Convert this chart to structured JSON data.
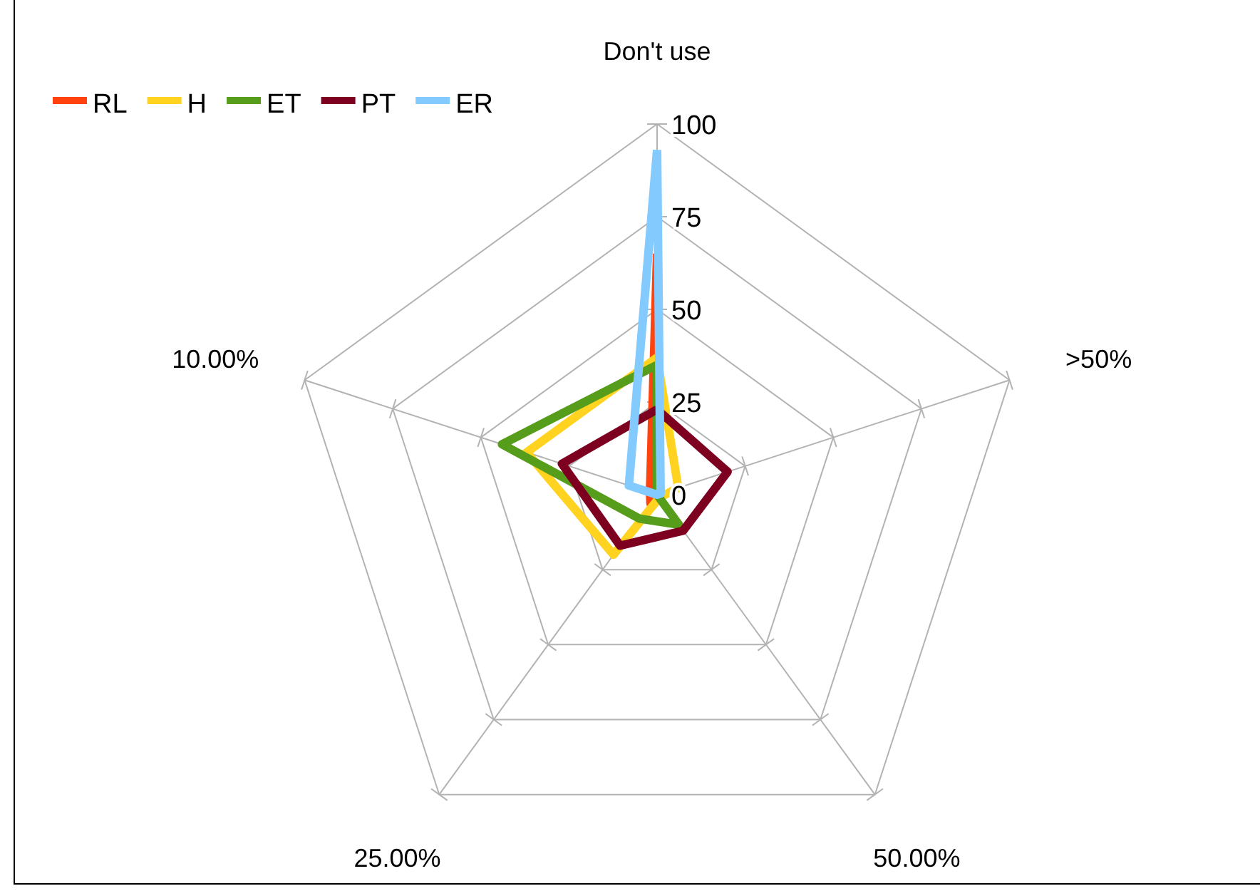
{
  "chart_data": {
    "type": "radar",
    "categories": [
      "Don't use",
      ">50%",
      "50.00%",
      "25.00%",
      "10.00%"
    ],
    "ylim": [
      0,
      100
    ],
    "yticks": [
      0,
      25,
      50,
      75,
      100
    ],
    "grid": true,
    "legend": "top left",
    "series": [
      {
        "name": "RL",
        "color": "#ff420e",
        "values": [
          65,
          0,
          0,
          3,
          2
        ]
      },
      {
        "name": "H",
        "color": "#ffd320",
        "values": [
          37,
          6,
          1,
          20,
          37
        ]
      },
      {
        "name": "ET",
        "color": "#579d1c",
        "values": [
          35,
          0,
          10,
          8,
          44
        ]
      },
      {
        "name": "PT",
        "color": "#7e0021",
        "values": [
          23,
          20,
          12,
          17,
          27
        ]
      },
      {
        "name": "ER",
        "color": "#83caff",
        "values": [
          93,
          1,
          0,
          0,
          8
        ]
      }
    ]
  }
}
